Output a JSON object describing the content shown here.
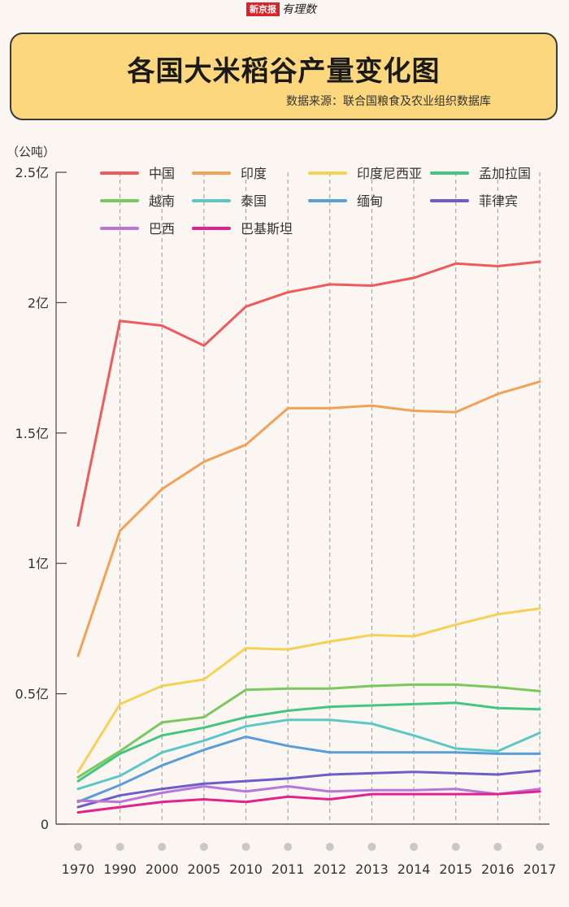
{
  "brand": {
    "name": "新京报",
    "column": "有理数"
  },
  "header": {
    "title": "各国大米稻谷产量变化图",
    "source": "数据来源：联合国粮食及农业组织数据库"
  },
  "colors": {
    "background": "#fbf6f1",
    "header_bg": "#fcd77d",
    "axis": "#444444",
    "grid": "#9a9a9a"
  },
  "chart_data": {
    "type": "line",
    "unit_label": "（公吨）",
    "x": [
      "1970",
      "1990",
      "2000",
      "2005",
      "2010",
      "2011",
      "2012",
      "2013",
      "2014",
      "2015",
      "2016",
      "2017"
    ],
    "ylim": [
      0,
      250000000
    ],
    "yticks": [
      {
        "value": 0,
        "label": "0"
      },
      {
        "value": 50000000,
        "label": "0.5亿"
      },
      {
        "value": 100000000,
        "label": "1亿"
      },
      {
        "value": 150000000,
        "label": "1.5亿"
      },
      {
        "value": 200000000,
        "label": "2亿"
      },
      {
        "value": 250000000,
        "label": "2.5亿"
      }
    ],
    "grid": "vertical-dashed",
    "legend_position": "top",
    "series": [
      {
        "name": "中国",
        "color": "#ef5a5e",
        "values": [
          114500000,
          193000000,
          191200000,
          183500000,
          198500000,
          204000000,
          207000000,
          206500000,
          209500000,
          215000000,
          214000000,
          215700000
        ]
      },
      {
        "name": "印度",
        "color": "#f2a256",
        "values": [
          64500000,
          112500000,
          128500000,
          139000000,
          145500000,
          159500000,
          159500000,
          160500000,
          158500000,
          158000000,
          165000000,
          169700000
        ]
      },
      {
        "name": "印度尼西亚",
        "color": "#f5d158",
        "values": [
          20000000,
          46000000,
          53000000,
          55500000,
          67500000,
          67000000,
          70000000,
          72500000,
          72000000,
          76500000,
          80500000,
          82700000
        ]
      },
      {
        "name": "孟加拉国",
        "color": "#45c583",
        "values": [
          16500000,
          27000000,
          34000000,
          37000000,
          41000000,
          43500000,
          45000000,
          45500000,
          46000000,
          46500000,
          44500000,
          44000000
        ]
      },
      {
        "name": "越南",
        "color": "#7ac85e",
        "values": [
          18000000,
          28000000,
          39000000,
          41000000,
          51500000,
          52000000,
          52000000,
          53000000,
          53500000,
          53500000,
          52500000,
          51000000
        ]
      },
      {
        "name": "泰国",
        "color": "#5cc7c5",
        "values": [
          13500000,
          18500000,
          27500000,
          32000000,
          37500000,
          40000000,
          40000000,
          38500000,
          34000000,
          29000000,
          28000000,
          35000000
        ]
      },
      {
        "name": "缅甸",
        "color": "#5a9ed8",
        "values": [
          8500000,
          15000000,
          22500000,
          28500000,
          33500000,
          30000000,
          27500000,
          27500000,
          27500000,
          27500000,
          27000000,
          27000000
        ]
      },
      {
        "name": "菲律宾",
        "color": "#6b5ec9",
        "values": [
          6500000,
          11000000,
          13500000,
          15500000,
          16500000,
          17500000,
          19000000,
          19500000,
          20000000,
          19500000,
          19000000,
          20500000
        ]
      },
      {
        "name": "巴西",
        "color": "#b877d8",
        "values": [
          9000000,
          8500000,
          12000000,
          14500000,
          12500000,
          14500000,
          12500000,
          13000000,
          13000000,
          13500000,
          11500000,
          13500000
        ]
      },
      {
        "name": "巴基斯坦",
        "color": "#e2238e",
        "values": [
          4500000,
          6500000,
          8500000,
          9500000,
          8500000,
          10500000,
          9500000,
          11500000,
          11500000,
          11500000,
          11500000,
          12500000
        ]
      }
    ]
  }
}
